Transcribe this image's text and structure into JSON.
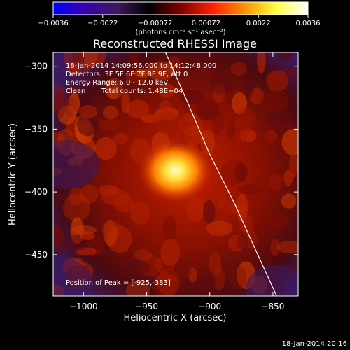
{
  "chart_data": {
    "type": "heatmap",
    "title": "Reconstructed RHESSI Image",
    "xlabel": "Heliocentric X (arcsec)",
    "ylabel": "Heliocentric Y (arcsec)",
    "xlim": [
      -1024,
      -830
    ],
    "ylim": [
      -483,
      -289
    ],
    "x_ticks": [
      -1000,
      -950,
      -900,
      -850
    ],
    "x_tick_labels": [
      "−1000",
      "−950",
      "−900",
      "−850"
    ],
    "y_ticks": [
      -300,
      -350,
      -400,
      -450
    ],
    "y_tick_labels": [
      "−300",
      "−350",
      "−400",
      "−450"
    ],
    "colorbar": {
      "min": -0.0036,
      "max": 0.0036,
      "ticks": [
        -0.0036,
        -0.0022,
        -0.00072,
        0.00072,
        0.0022,
        0.0036
      ],
      "tick_labels": [
        "−0.0036",
        "−0.0022",
        "−0.00072",
        "0.00072",
        "0.0022",
        "0.0036"
      ],
      "label": "(photons cm⁻² s⁻¹ asec⁻²)",
      "colors": [
        "#0000ff",
        "#3a00aa",
        "#3d1a5c",
        "#000000",
        "#800000",
        "#ff2000",
        "#ff9000",
        "#ffff40",
        "#ffffff"
      ]
    },
    "annotations": {
      "time_range": "18-Jan-2014 14:09:56.000 to 14:12:48.000",
      "detectors": "Detectors: 3F 5F 6F 7F 8F 9F, Att 0",
      "energy": "Energy Range: 6.0 - 12.0 keV",
      "clean": "Clean",
      "counts": "Total counts: 1.48E+04",
      "peak": "Position of Peak = [-925,-383]"
    },
    "peak_position": [
      -925,
      -383
    ],
    "limb_points": [
      [
        -935,
        -289
      ],
      [
        -917,
        -330
      ],
      [
        -900,
        -370
      ],
      [
        -880,
        -410
      ],
      [
        -862,
        -450
      ],
      [
        -847,
        -483
      ]
    ]
  },
  "footer": {
    "timestamp": "18-Jan-2014 20:16"
  }
}
